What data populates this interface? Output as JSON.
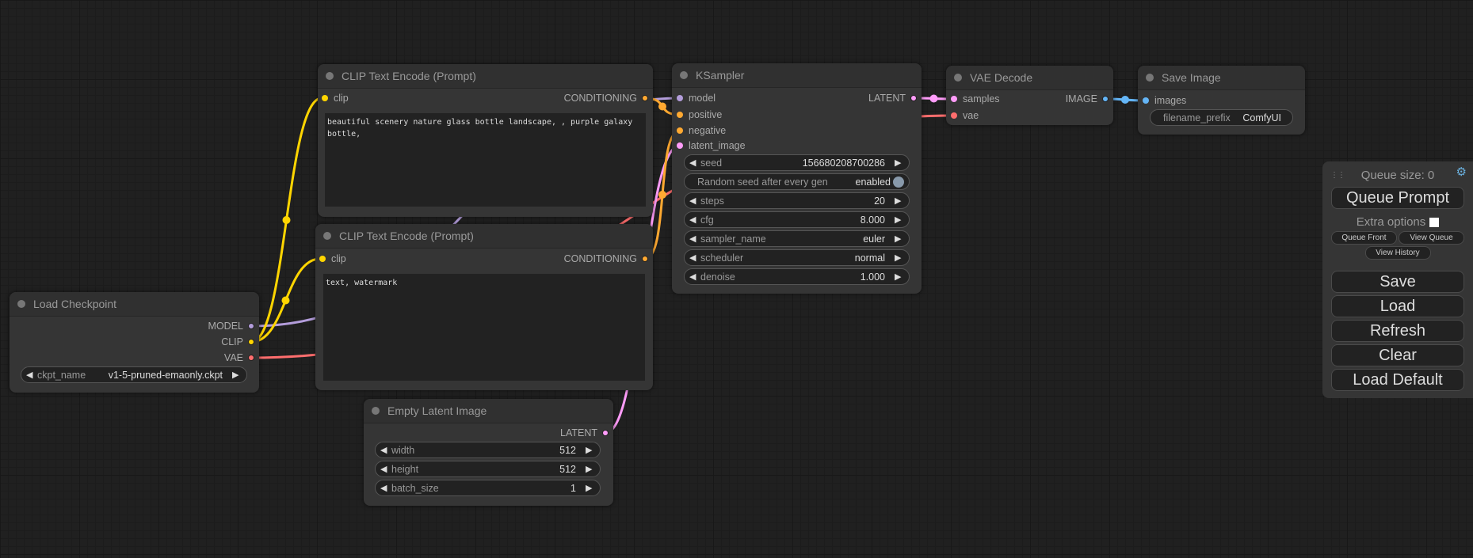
{
  "colors": {
    "model": "#b39ddb",
    "clip": "#ffd500",
    "vae": "#ff6e6e",
    "conditioning": "#ffa931",
    "latent": "#ff9cf9",
    "image": "#64b5f6"
  },
  "load_checkpoint": {
    "title": "Load Checkpoint",
    "outputs": [
      "MODEL",
      "CLIP",
      "VAE"
    ],
    "ckpt_label": "ckpt_name",
    "ckpt_value": "v1-5-pruned-emaonly.ckpt"
  },
  "clip_pos": {
    "title": "CLIP Text Encode (Prompt)",
    "input": "clip",
    "output": "CONDITIONING",
    "text": "beautiful scenery nature glass bottle landscape, , purple galaxy bottle,"
  },
  "clip_neg": {
    "title": "CLIP Text Encode (Prompt)",
    "input": "clip",
    "output": "CONDITIONING",
    "text": "text, watermark"
  },
  "empty_latent": {
    "title": "Empty Latent Image",
    "output": "LATENT",
    "widgets": [
      {
        "label": "width",
        "value": "512"
      },
      {
        "label": "height",
        "value": "512"
      },
      {
        "label": "batch_size",
        "value": "1"
      }
    ]
  },
  "ksampler": {
    "title": "KSampler",
    "inputs": [
      "model",
      "positive",
      "negative",
      "latent_image"
    ],
    "output": "LATENT",
    "seed": {
      "label": "seed",
      "value": "156680208700286"
    },
    "random_seed": {
      "label": "Random seed after every gen",
      "value": "enabled"
    },
    "widgets": [
      {
        "label": "steps",
        "value": "20"
      },
      {
        "label": "cfg",
        "value": "8.000"
      },
      {
        "label": "sampler_name",
        "value": "euler"
      },
      {
        "label": "scheduler",
        "value": "normal"
      },
      {
        "label": "denoise",
        "value": "1.000"
      }
    ]
  },
  "vae_decode": {
    "title": "VAE Decode",
    "inputs": [
      "samples",
      "vae"
    ],
    "output": "IMAGE"
  },
  "save_image": {
    "title": "Save Image",
    "input": "images",
    "filename_label": "filename_prefix",
    "filename_value": "ComfyUI"
  },
  "panel": {
    "queue_size": "Queue size: 0",
    "queue_prompt": "Queue Prompt",
    "extra_options": "Extra options",
    "queue_front": "Queue Front",
    "view_queue": "View Queue",
    "view_history": "View History",
    "save": "Save",
    "load": "Load",
    "refresh": "Refresh",
    "clear": "Clear",
    "load_default": "Load Default"
  }
}
